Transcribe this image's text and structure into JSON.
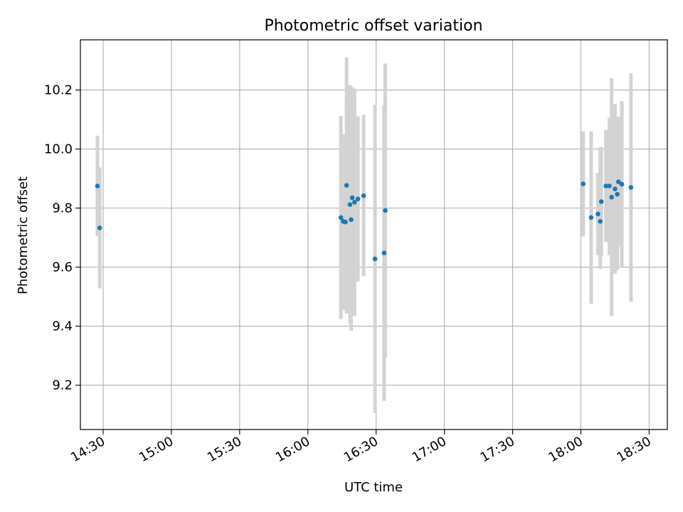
{
  "chart_data": {
    "type": "scatter",
    "title": "Photometric offset variation",
    "xlabel": "UTC time",
    "ylabel": "Photometric offset",
    "xlim": [
      "14:20",
      "18:38"
    ],
    "ylim": [
      9.05,
      10.37
    ],
    "x_ticks": [
      "14:30",
      "15:00",
      "15:30",
      "16:00",
      "16:30",
      "17:00",
      "17:30",
      "18:00",
      "18:30"
    ],
    "y_ticks": [
      9.2,
      9.4,
      9.6,
      9.8,
      10.0,
      10.2
    ],
    "grid": true,
    "point_color": "#1f77b4",
    "errorbar_color": "#d3d3d3",
    "points": [
      {
        "x": "14:27:30",
        "y": 9.875,
        "ylo": 9.705,
        "yhi": 10.045
      },
      {
        "x": "14:28:30",
        "y": 9.733,
        "ylo": 9.528,
        "yhi": 9.938
      },
      {
        "x": "16:14:30",
        "y": 9.768,
        "ylo": 9.424,
        "yhi": 10.112
      },
      {
        "x": "16:15:30",
        "y": 9.755,
        "ylo": 9.455,
        "yhi": 10.05
      },
      {
        "x": "16:16:30",
        "y": 9.753,
        "ylo": 9.46,
        "yhi": 10.05
      },
      {
        "x": "16:17:00",
        "y": 9.877,
        "ylo": 9.443,
        "yhi": 10.311
      },
      {
        "x": "16:18:30",
        "y": 9.812,
        "ylo": 9.409,
        "yhi": 10.217
      },
      {
        "x": "16:19:00",
        "y": 9.761,
        "ylo": 9.385,
        "yhi": 10.136
      },
      {
        "x": "16:19:30",
        "y": 9.835,
        "ylo": 9.45,
        "yhi": 10.21
      },
      {
        "x": "16:20:30",
        "y": 9.82,
        "ylo": 9.434,
        "yhi": 10.204
      },
      {
        "x": "16:22:00",
        "y": 9.831,
        "ylo": 9.551,
        "yhi": 10.111
      },
      {
        "x": "16:24:30",
        "y": 9.842,
        "ylo": 9.569,
        "yhi": 10.116
      },
      {
        "x": "16:29:30",
        "y": 9.628,
        "ylo": 9.106,
        "yhi": 10.15
      },
      {
        "x": "16:33:30",
        "y": 9.648,
        "ylo": 9.147,
        "yhi": 10.149
      },
      {
        "x": "16:34:00",
        "y": 9.792,
        "ylo": 9.294,
        "yhi": 10.29
      },
      {
        "x": "18:01:00",
        "y": 9.882,
        "ylo": 9.704,
        "yhi": 10.06
      },
      {
        "x": "18:04:30",
        "y": 9.768,
        "ylo": 9.476,
        "yhi": 10.06
      },
      {
        "x": "18:07:30",
        "y": 9.78,
        "ylo": 9.64,
        "yhi": 9.92
      },
      {
        "x": "18:08:30",
        "y": 9.755,
        "ylo": 9.593,
        "yhi": 10.007
      },
      {
        "x": "18:09:00",
        "y": 9.822,
        "ylo": 9.638,
        "yhi": 10.006
      },
      {
        "x": "18:11:00",
        "y": 9.875,
        "ylo": 9.685,
        "yhi": 10.065
      },
      {
        "x": "18:12:30",
        "y": 9.875,
        "ylo": 9.64,
        "yhi": 10.106
      },
      {
        "x": "18:13:30",
        "y": 9.837,
        "ylo": 9.434,
        "yhi": 10.24
      },
      {
        "x": "18:15:00",
        "y": 9.865,
        "ylo": 9.578,
        "yhi": 10.152
      },
      {
        "x": "18:16:00",
        "y": 9.847,
        "ylo": 9.59,
        "yhi": 10.105
      },
      {
        "x": "18:16:30",
        "y": 9.889,
        "ylo": 9.668,
        "yhi": 10.11
      },
      {
        "x": "18:18:00",
        "y": 9.881,
        "ylo": 9.6,
        "yhi": 10.162
      },
      {
        "x": "18:22:00",
        "y": 9.87,
        "ylo": 9.483,
        "yhi": 10.257
      }
    ]
  }
}
